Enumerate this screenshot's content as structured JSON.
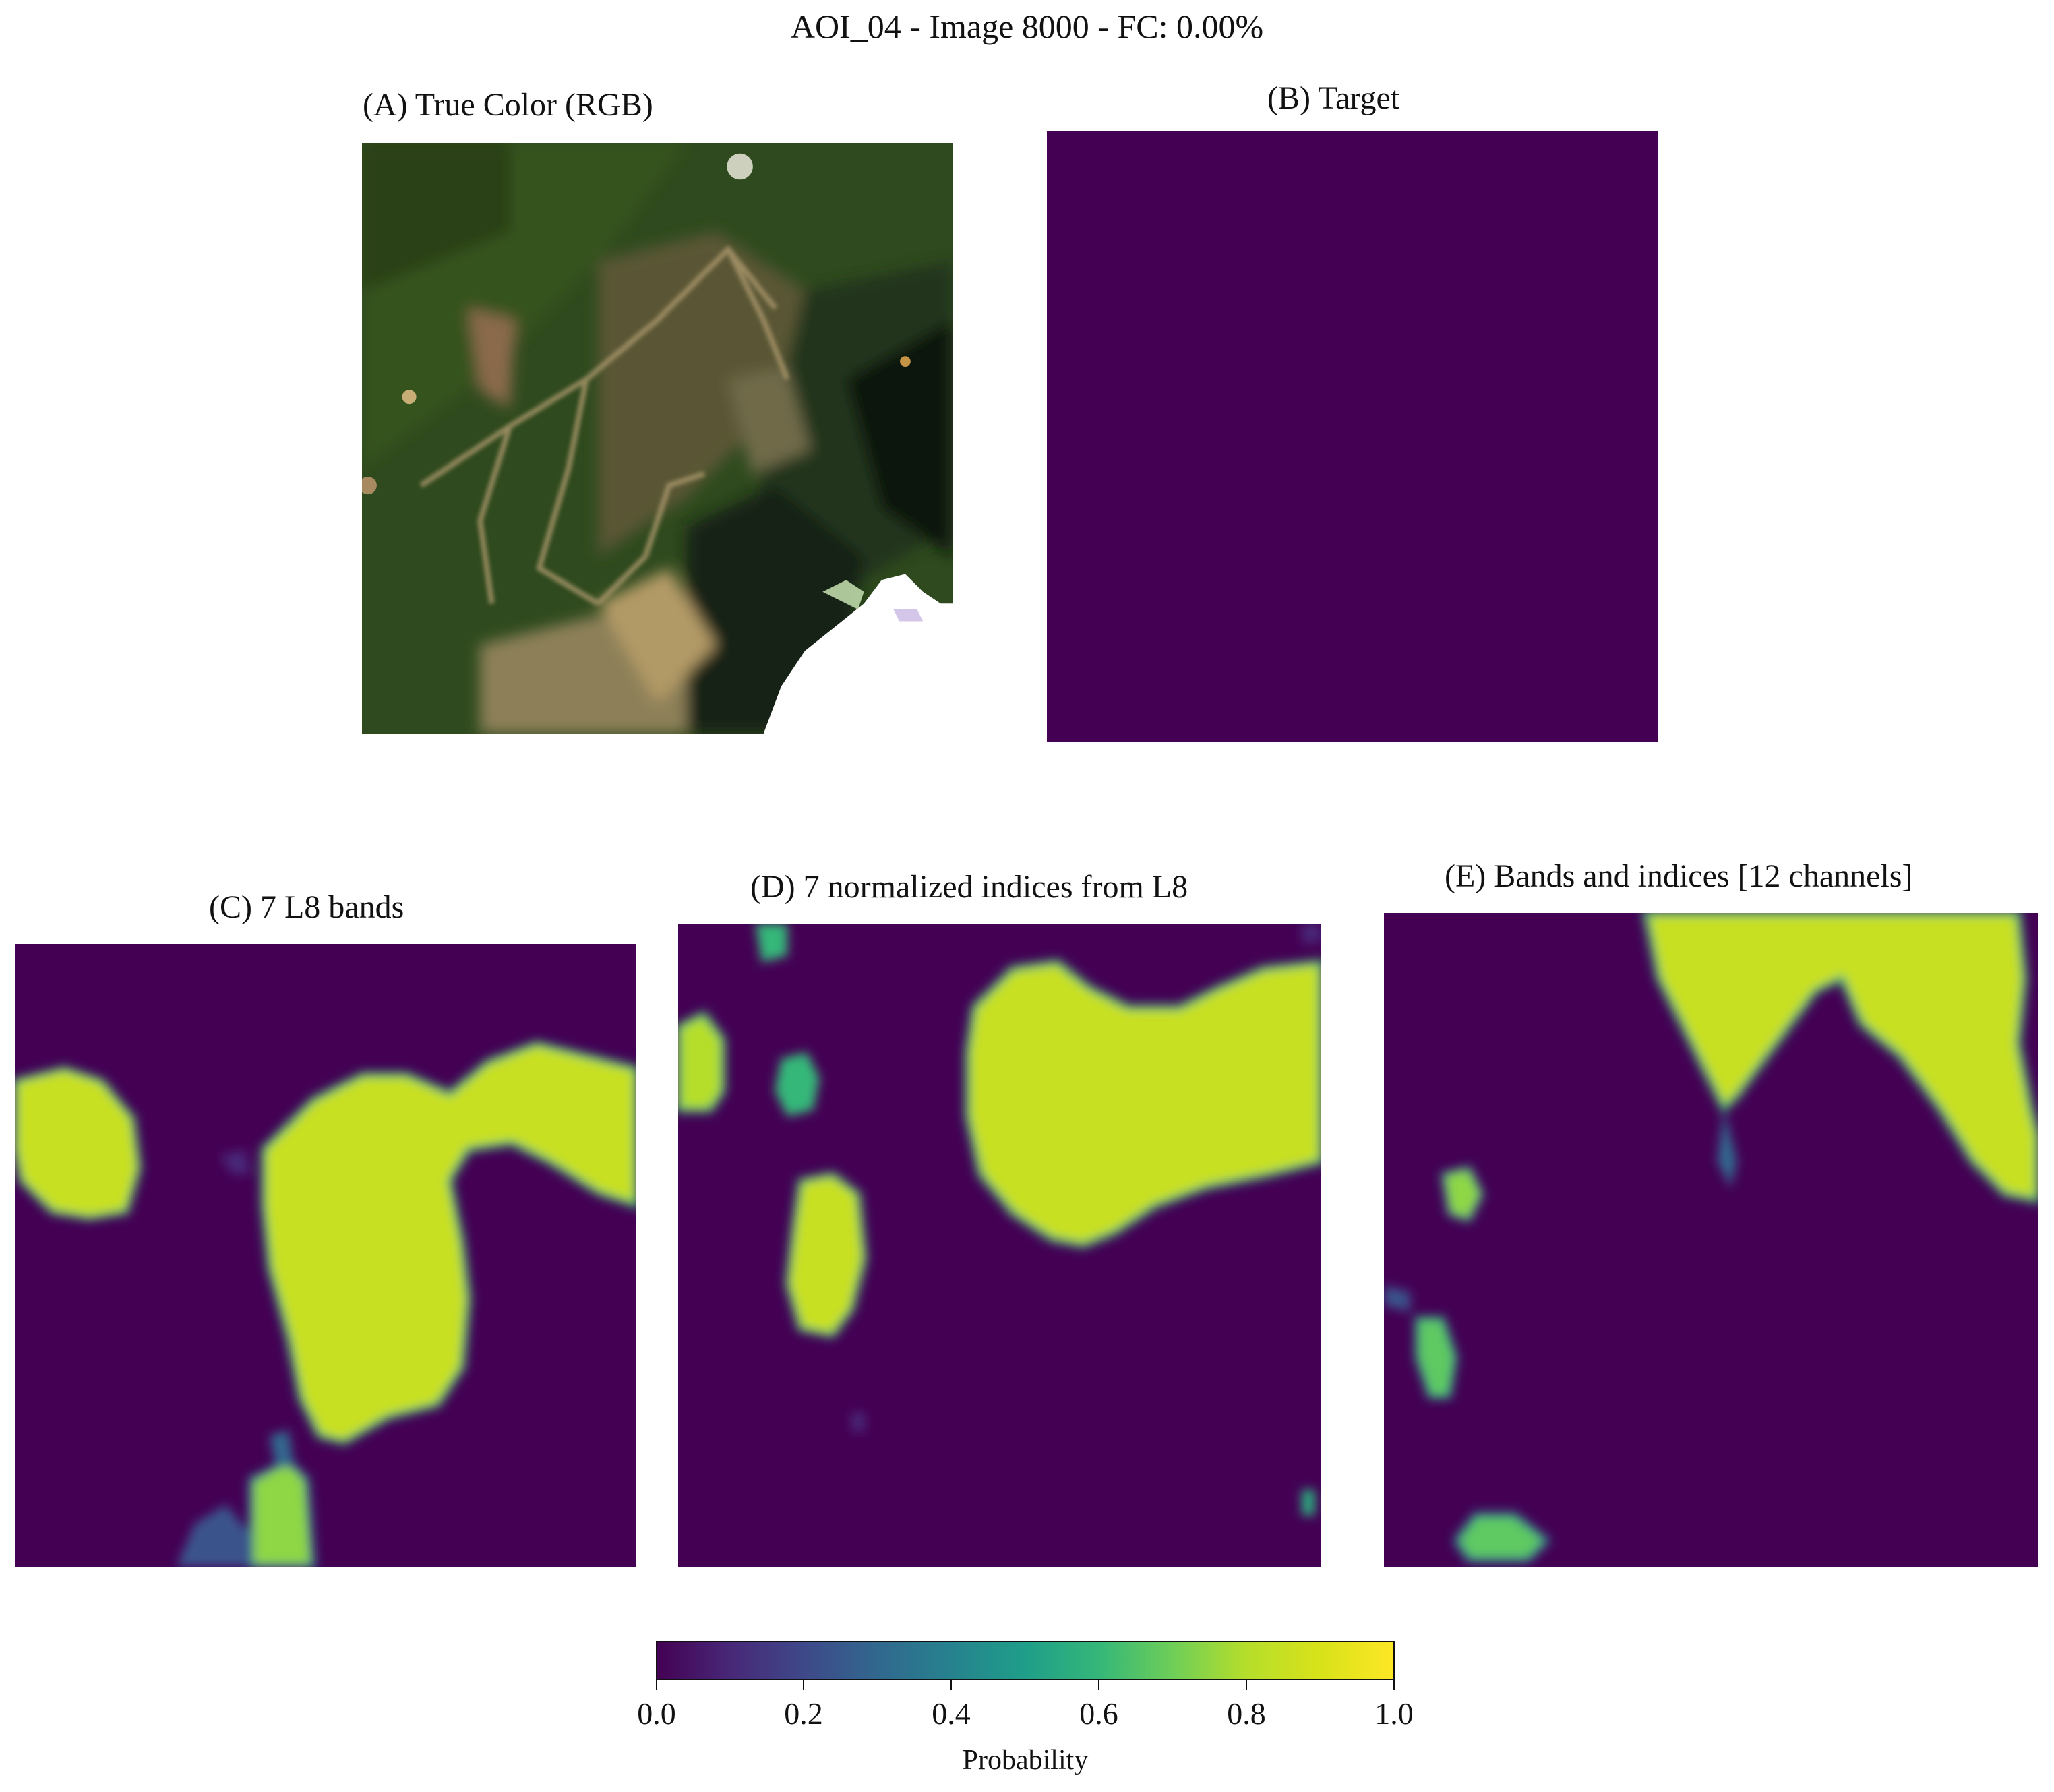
{
  "figure": {
    "suptitle": "AOI_04 - Image 8000 - FC: 0.00%",
    "panels": {
      "a": {
        "title": "(A) True Color (RGB)"
      },
      "b": {
        "title": "(B) Target"
      },
      "c": {
        "title": "(C) 7 L8 bands"
      },
      "d": {
        "title": "(D) 7 normalized indices from L8"
      },
      "e": {
        "title": "(E) Bands and indices [12 channels]"
      }
    },
    "colorbar": {
      "label": "Probability",
      "colormap": "viridis",
      "range": [
        0.0,
        1.0
      ],
      "ticks": [
        "0.0",
        "0.2",
        "0.4",
        "0.6",
        "0.8",
        "1.0"
      ]
    }
  },
  "colors": {
    "background_class": "#440154",
    "high_probability": "#c8e020",
    "forest": "#2e4a1c",
    "cloud": "#ffffff"
  }
}
